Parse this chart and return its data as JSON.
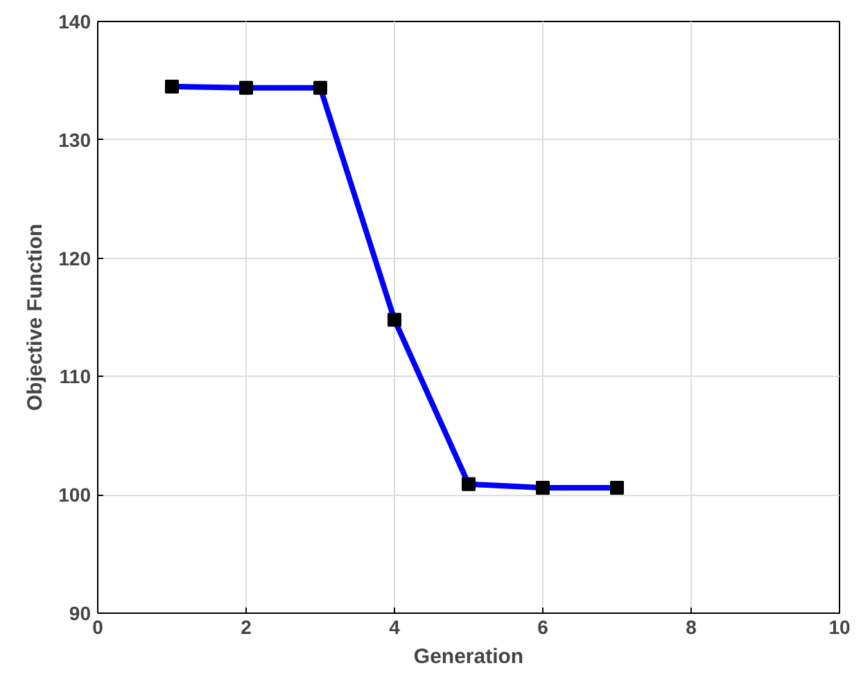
{
  "chart_data": {
    "type": "line",
    "xlabel": "Generation",
    "ylabel": "Objective Function",
    "x": [
      1,
      2,
      3,
      4,
      5,
      6,
      7
    ],
    "series": [
      {
        "color": "#0000ff",
        "values": [
          134.5,
          134.4,
          134.4,
          114.8,
          100.9,
          100.6,
          100.6
        ]
      }
    ],
    "xlim": [
      0,
      10
    ],
    "xticks": [
      0,
      2,
      4,
      6,
      8,
      10
    ],
    "ylim": [
      90,
      140
    ],
    "yticks": [
      90,
      100,
      110,
      120,
      130,
      140
    ],
    "grid": true,
    "marker": "square",
    "line_style": "solid"
  }
}
